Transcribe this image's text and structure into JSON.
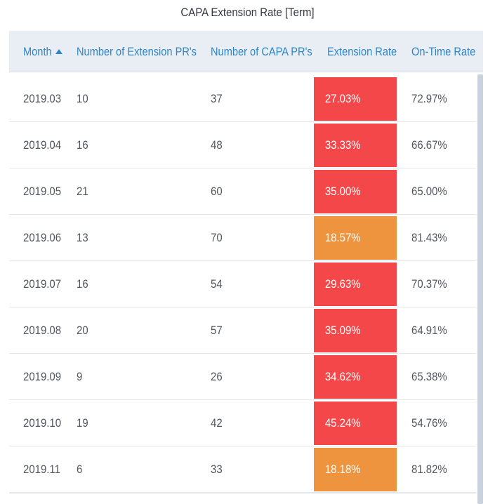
{
  "title": "CAPA Extension Rate [Term]",
  "colors": {
    "header_text": "#2e86c8",
    "header_bg": "#e9eef5",
    "high_rate": "#f4474a",
    "medium_rate": "#ef943e"
  },
  "columns": [
    {
      "label": "Month",
      "sort": "ascending"
    },
    {
      "label": "Number of Extension PR's"
    },
    {
      "label": "Number of CAPA PR's"
    },
    {
      "label": "Extension Rate"
    },
    {
      "label": "On-Time Rate"
    }
  ],
  "rows": [
    {
      "month": "2019.03",
      "ext": "10",
      "capa": "37",
      "rate": "27.03%",
      "ontime": "72.97%",
      "level": "high"
    },
    {
      "month": "2019.04",
      "ext": "16",
      "capa": "48",
      "rate": "33.33%",
      "ontime": "66.67%",
      "level": "high"
    },
    {
      "month": "2019.05",
      "ext": "21",
      "capa": "60",
      "rate": "35.00%",
      "ontime": "65.00%",
      "level": "high"
    },
    {
      "month": "2019.06",
      "ext": "13",
      "capa": "70",
      "rate": "18.57%",
      "ontime": "81.43%",
      "level": "medium"
    },
    {
      "month": "2019.07",
      "ext": "16",
      "capa": "54",
      "rate": "29.63%",
      "ontime": "70.37%",
      "level": "high"
    },
    {
      "month": "2019.08",
      "ext": "20",
      "capa": "57",
      "rate": "35.09%",
      "ontime": "64.91%",
      "level": "high"
    },
    {
      "month": "2019.09",
      "ext": "9",
      "capa": "26",
      "rate": "34.62%",
      "ontime": "65.38%",
      "level": "high"
    },
    {
      "month": "2019.10",
      "ext": "19",
      "capa": "42",
      "rate": "45.24%",
      "ontime": "54.76%",
      "level": "high"
    },
    {
      "month": "2019.11",
      "ext": "6",
      "capa": "33",
      "rate": "18.18%",
      "ontime": "81.82%",
      "level": "medium"
    }
  ]
}
